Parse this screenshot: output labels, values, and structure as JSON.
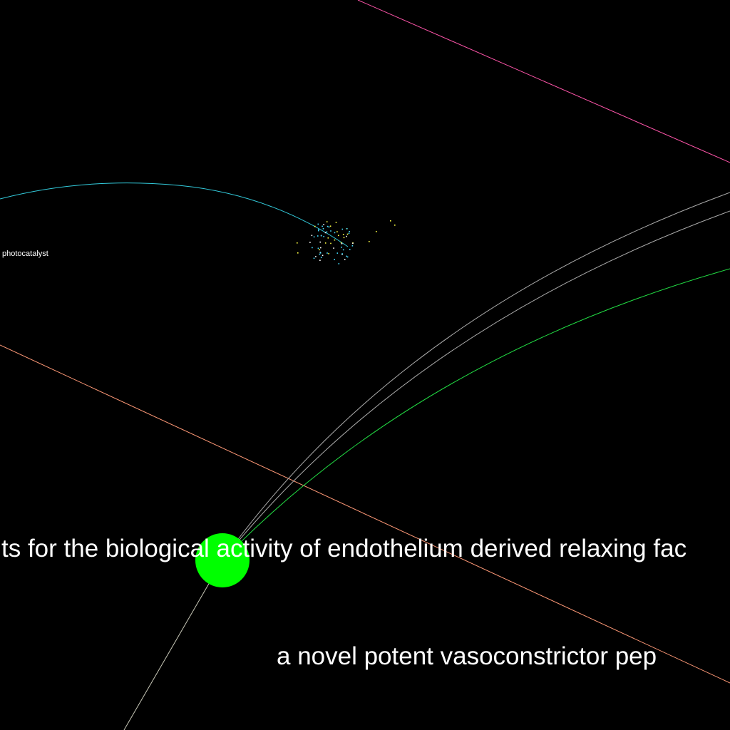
{
  "labels": {
    "photocatalyst": "photocatalyst",
    "sentence_one": "ts for the biological activity of endothelium derived relaxing fac",
    "sentence_two": "a novel potent vasoconstrictor pep"
  },
  "colors": {
    "background": "#000000",
    "text": "#ffffff",
    "node": "#00ff00",
    "edge_cyan": "#33ccdd",
    "edge_magenta": "#ff55aa",
    "edge_orange": "#ff9977",
    "edge_grey": "#aaaaaa",
    "edge_grey_light": "#c8c8b8",
    "edge_green": "#22dd44",
    "dot_yellow": "#ffff44",
    "dot_cyan": "#44ddff"
  }
}
